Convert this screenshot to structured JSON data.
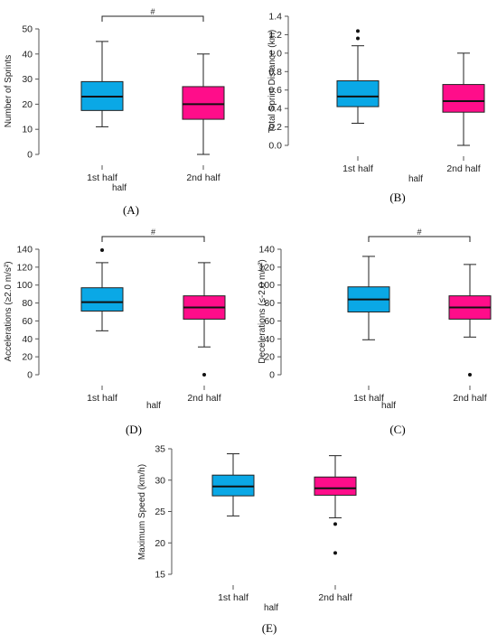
{
  "colors": {
    "first_half": "#0aa8e6",
    "second_half": "#ff0d8a",
    "axis": "#555555",
    "whisker": "#222222"
  },
  "chart_data": [
    {
      "type": "box",
      "panel_label": "(A)",
      "ylabel": "Number of Sprints",
      "xlabel": "half",
      "categories": [
        "1st half",
        "2nd half"
      ],
      "yticks": [
        "0",
        "10",
        "20",
        "30",
        "40",
        "50"
      ],
      "ylim": [
        0,
        50
      ],
      "boxes": [
        {
          "whisker_low": 11,
          "q1": 17.5,
          "median": 23,
          "q3": 29,
          "whisker_high": 45,
          "outliers": []
        },
        {
          "whisker_low": 0,
          "q1": 14,
          "median": 20,
          "q3": 27,
          "whisker_high": 40,
          "outliers": []
        }
      ],
      "significance": "#"
    },
    {
      "type": "box",
      "panel_label": "(B)",
      "ylabel": "Total Sprint Distance (km)",
      "xlabel": "half",
      "categories": [
        "1st half",
        "2nd half"
      ],
      "yticks": [
        "0.0",
        "0.2",
        "0.4",
        "0.6",
        "0.8",
        "1.0",
        "1.2",
        "1.4"
      ],
      "ylim": [
        0,
        1.4
      ],
      "boxes": [
        {
          "whisker_low": 0.24,
          "q1": 0.42,
          "median": 0.53,
          "q3": 0.7,
          "whisker_high": 1.08,
          "outliers": [
            1.16,
            1.24
          ]
        },
        {
          "whisker_low": 0.0,
          "q1": 0.36,
          "median": 0.48,
          "q3": 0.66,
          "whisker_high": 1.0,
          "outliers": []
        }
      ],
      "significance": ""
    },
    {
      "type": "box",
      "panel_label": "(D)",
      "ylabel": "Accelerations (≥2.0 m/s²)",
      "xlabel": "half",
      "categories": [
        "1st half",
        "2nd half"
      ],
      "yticks": [
        "0",
        "20",
        "40",
        "60",
        "80",
        "100",
        "120",
        "140"
      ],
      "ylim": [
        0,
        140
      ],
      "boxes": [
        {
          "whisker_low": 49,
          "q1": 71,
          "median": 81,
          "q3": 97,
          "whisker_high": 125,
          "outliers": [
            139
          ]
        },
        {
          "whisker_low": 31,
          "q1": 62,
          "median": 75,
          "q3": 88,
          "whisker_high": 125,
          "outliers": [
            0
          ]
        }
      ],
      "significance": "#"
    },
    {
      "type": "box",
      "panel_label": "(C)",
      "ylabel": "Decelerations (≤-2.0 m/s²)",
      "xlabel": "half",
      "categories": [
        "1st half",
        "2nd half"
      ],
      "yticks": [
        "0",
        "20",
        "40",
        "60",
        "80",
        "100",
        "120",
        "140"
      ],
      "ylim": [
        0,
        140
      ],
      "boxes": [
        {
          "whisker_low": 39,
          "q1": 70,
          "median": 84,
          "q3": 98,
          "whisker_high": 132,
          "outliers": []
        },
        {
          "whisker_low": 42,
          "q1": 62,
          "median": 75,
          "q3": 88,
          "whisker_high": 123,
          "outliers": [
            0
          ]
        }
      ],
      "significance": "#"
    },
    {
      "type": "box",
      "panel_label": "(E)",
      "ylabel": "Maximum Speed (km/h)",
      "xlabel": "half",
      "categories": [
        "1st half",
        "2nd half"
      ],
      "yticks": [
        "15",
        "20",
        "25",
        "30",
        "35"
      ],
      "ylim": [
        15,
        35
      ],
      "boxes": [
        {
          "whisker_low": 24.3,
          "q1": 27.5,
          "median": 29,
          "q3": 30.8,
          "whisker_high": 34.2,
          "outliers": []
        },
        {
          "whisker_low": 24,
          "q1": 27.6,
          "median": 28.7,
          "q3": 30.5,
          "whisker_high": 33.9,
          "outliers": [
            18.4,
            23
          ]
        }
      ],
      "significance": ""
    }
  ]
}
